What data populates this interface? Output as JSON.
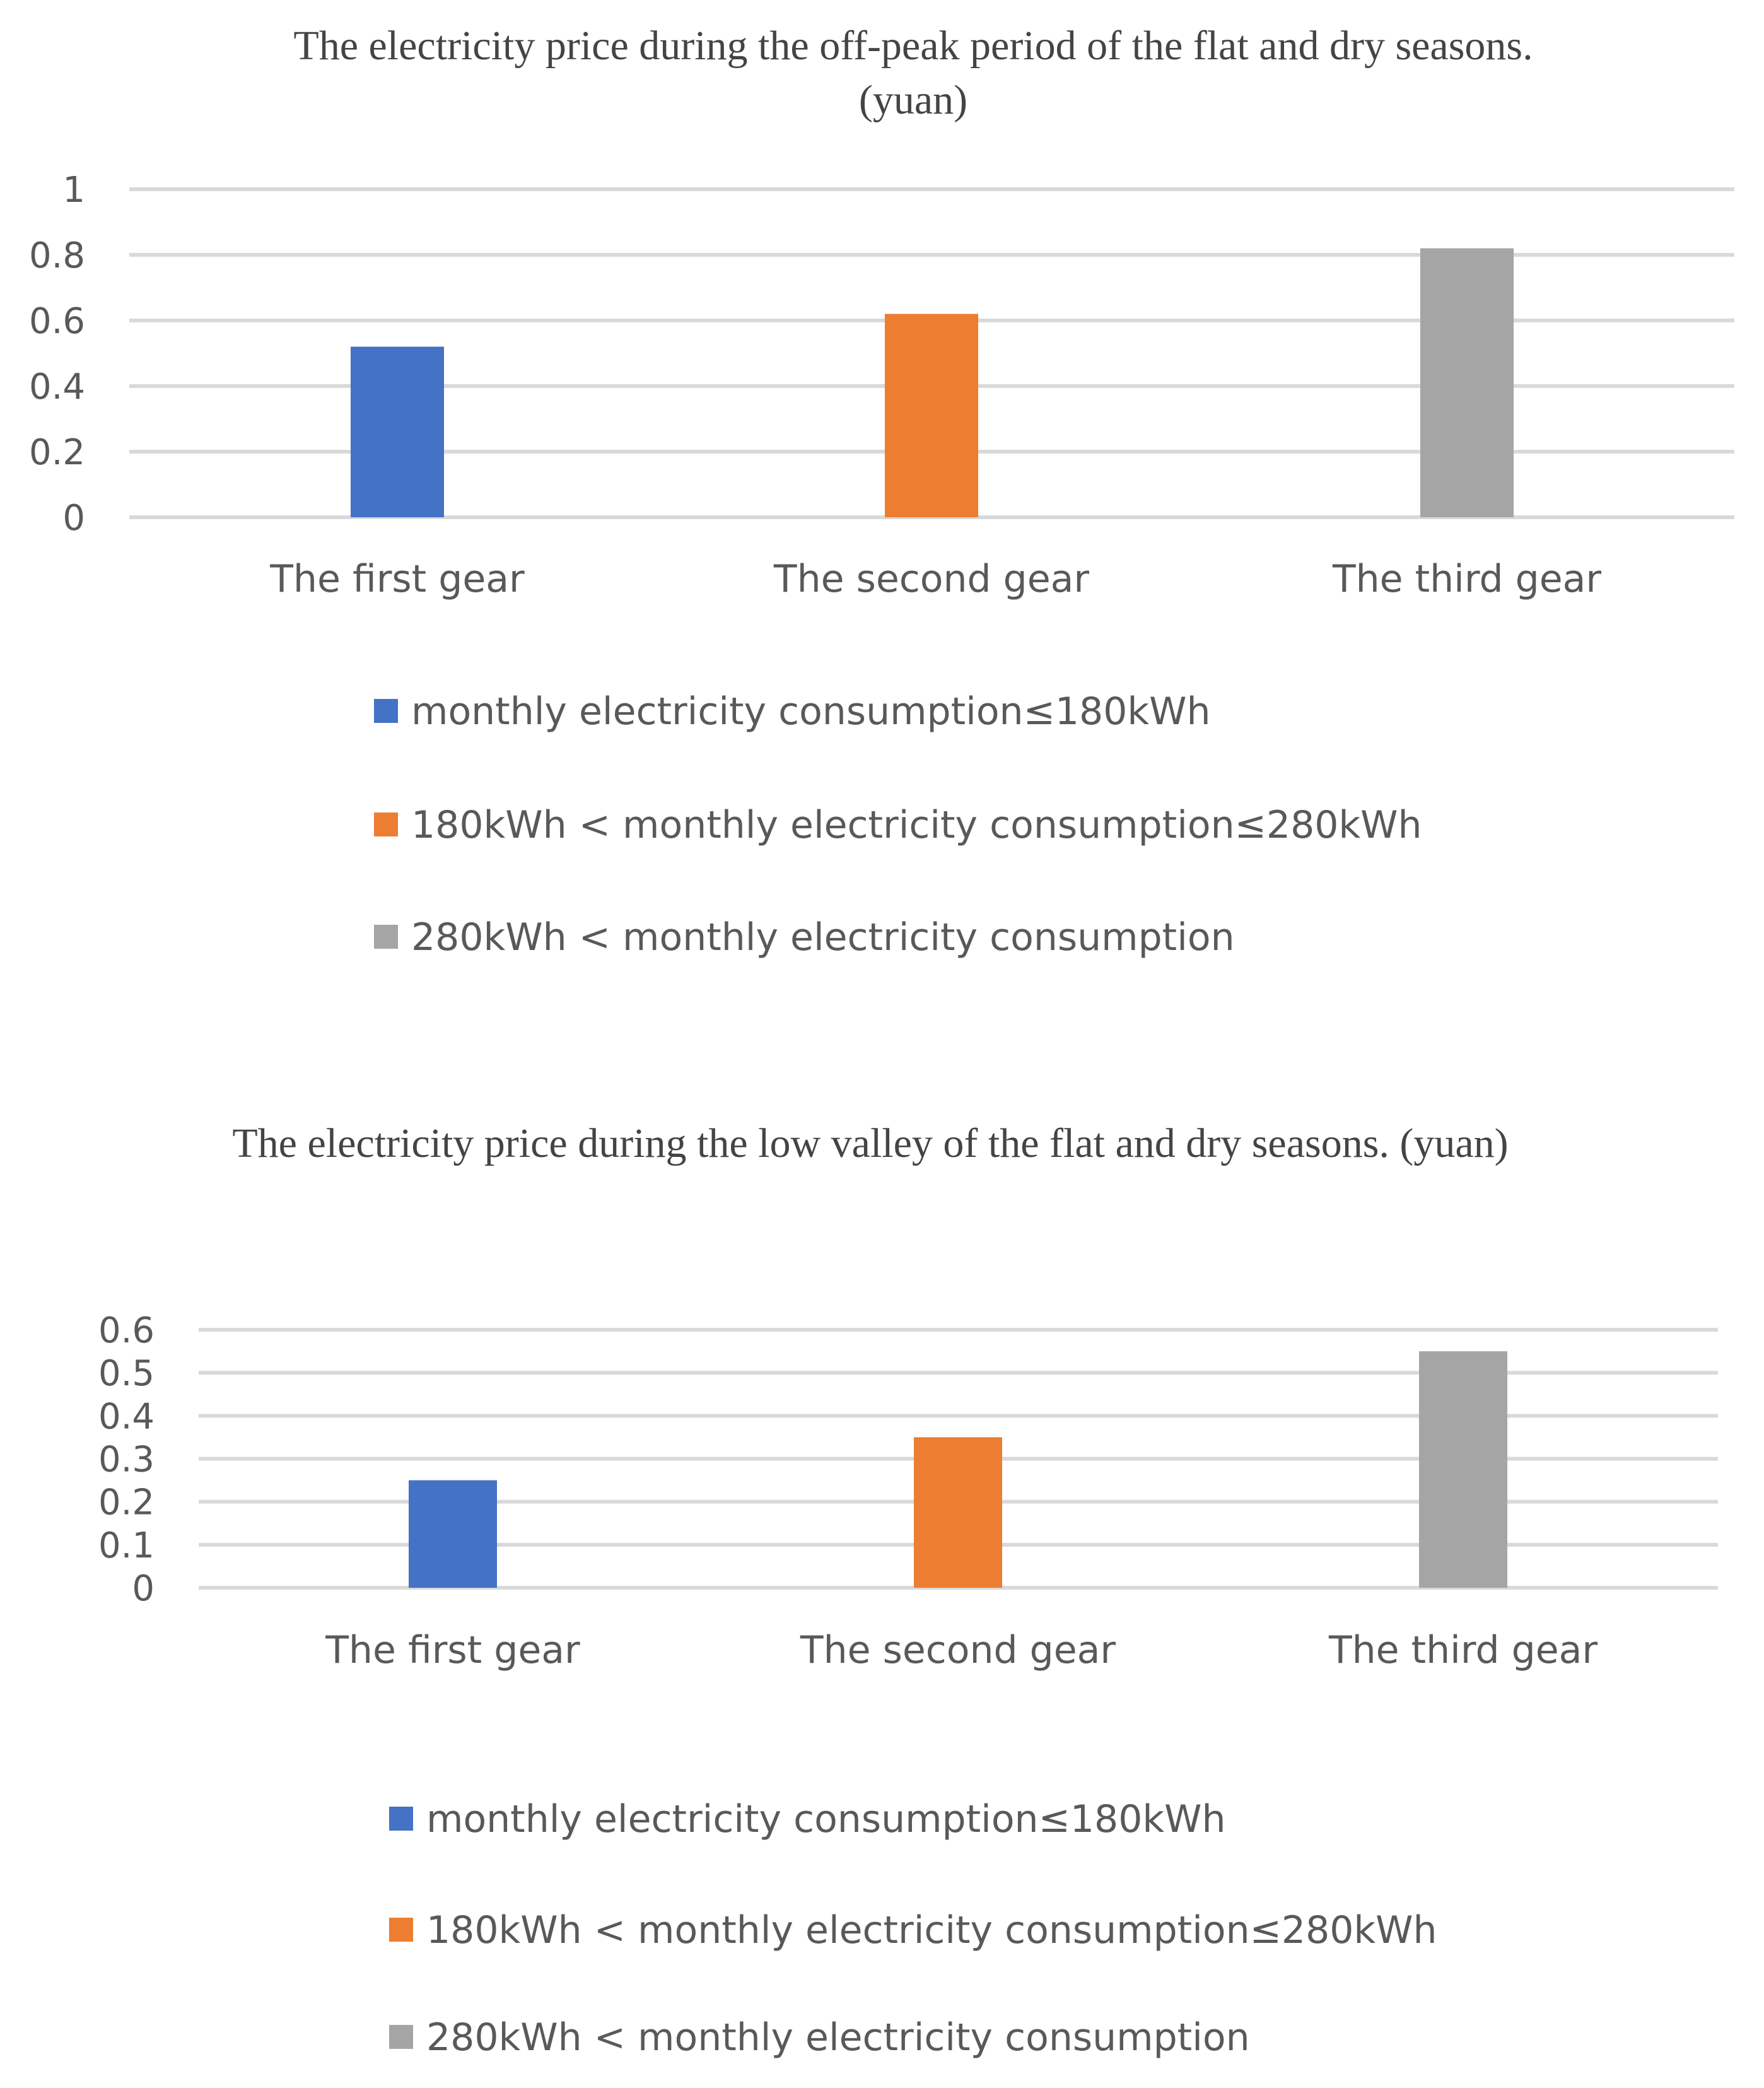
{
  "chart_data": [
    {
      "type": "bar",
      "title_lines": [
        "The electricity price during the off-peak period of the flat and dry seasons.",
        "(yuan)"
      ],
      "categories": [
        "The first gear",
        "The second gear",
        "The third gear"
      ],
      "series": [
        {
          "name": "monthly electricity consumption≤180kWh",
          "color": "#4472C4",
          "values": [
            0.52,
            null,
            null
          ]
        },
        {
          "name": "180kWh < monthly electricity consumption≤280kWh",
          "color": "#ED7D31",
          "values": [
            null,
            0.62,
            null
          ]
        },
        {
          "name": "280kWh < monthly electricity consumption",
          "color": "#A5A5A5",
          "values": [
            null,
            null,
            0.82
          ]
        }
      ],
      "yticks": [
        "0",
        "0.2",
        "0.4",
        "0.6",
        "0.8",
        "1"
      ],
      "ylim": [
        0,
        1
      ],
      "grid": true,
      "legend": "bottom"
    },
    {
      "type": "bar",
      "title_lines": [
        "The electricity price during the low valley of the flat and dry seasons. (yuan)"
      ],
      "categories": [
        "The first gear",
        "The second gear",
        "The third gear"
      ],
      "series": [
        {
          "name": "monthly electricity consumption≤180kWh",
          "color": "#4472C4",
          "values": [
            0.25,
            null,
            null
          ]
        },
        {
          "name": "180kWh < monthly electricity consumption≤280kWh",
          "color": "#ED7D31",
          "values": [
            null,
            0.35,
            null
          ]
        },
        {
          "name": "280kWh < monthly electricity consumption",
          "color": "#A5A5A5",
          "values": [
            null,
            null,
            0.55
          ]
        }
      ],
      "yticks": [
        "0",
        "0.1",
        "0.2",
        "0.3",
        "0.4",
        "0.5",
        "0.6"
      ],
      "ylim": [
        0,
        0.6
      ],
      "grid": true,
      "legend": "bottom"
    }
  ]
}
